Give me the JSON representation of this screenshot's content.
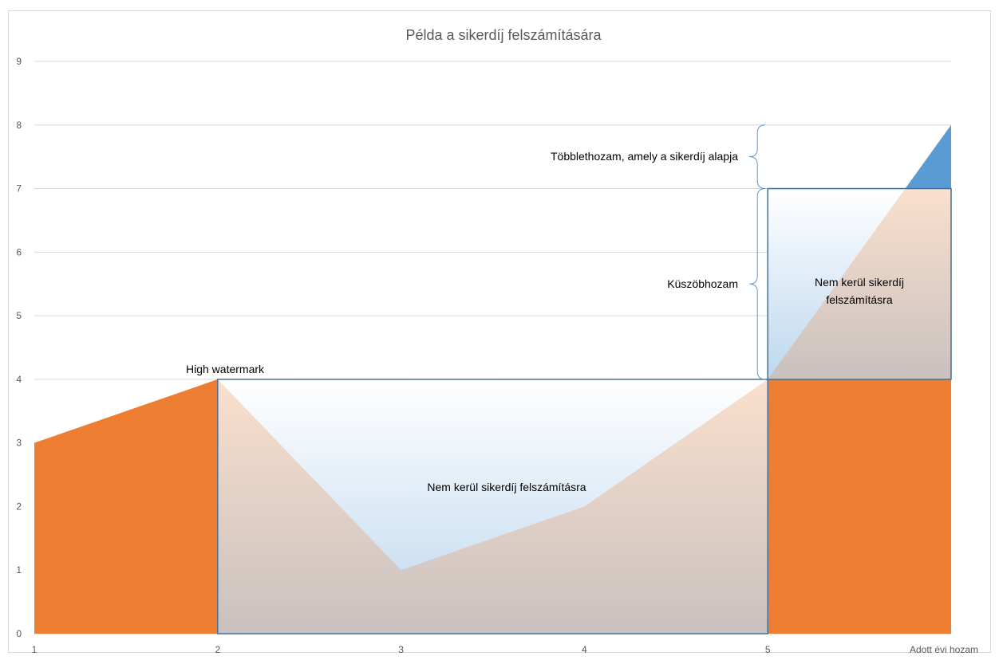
{
  "chart_data": {
    "type": "area",
    "title": "Példa a sikerdíj felszámítására",
    "xlabel": "Adott évi hozam",
    "ylabel": "",
    "x": [
      1,
      2,
      3,
      4,
      5,
      6
    ],
    "xticks": [
      "1",
      "2",
      "3",
      "4",
      "5"
    ],
    "yticks": [
      "0",
      "1",
      "2",
      "3",
      "4",
      "5",
      "6",
      "7",
      "8",
      "9"
    ],
    "ylim": [
      0,
      9
    ],
    "xlim": [
      1,
      6
    ],
    "grid": true,
    "series": [
      {
        "values": [
          3,
          4,
          1,
          2,
          4,
          8
        ]
      }
    ],
    "regions": [
      {
        "label": "Nem kerül sikerdíj felszámításra",
        "x": [
          2,
          5
        ],
        "y": [
          0,
          4
        ]
      },
      {
        "label": "Nem kerül sikerdíj felszámításra",
        "x": [
          5,
          6
        ],
        "y": [
          4,
          7
        ]
      },
      {
        "label": "",
        "x": [
          5.75,
          6
        ],
        "y": [
          7,
          8
        ]
      }
    ],
    "annotations": {
      "high_watermark": "High watermark",
      "threshold": "Küszöbhozam",
      "excess": "Többlethozam, amely a sikerdíj alapja",
      "region_main": "Nem kerül sikerdíj felszámításra",
      "region_right": "Nem kerül sikerdíj felszámításra",
      "region_right_line1": "Nem kerül sikerdíj",
      "region_right_line2": "felszámításra"
    },
    "colors": {
      "area": "#ED7D31",
      "excess": "#5B9BD5",
      "box_stroke": "#41719C",
      "gradient_top": "#ffffff",
      "gradient_bottom": "#BDD7EE",
      "gridline": "#d9d9d9",
      "brace": "#5B9BD5"
    }
  }
}
